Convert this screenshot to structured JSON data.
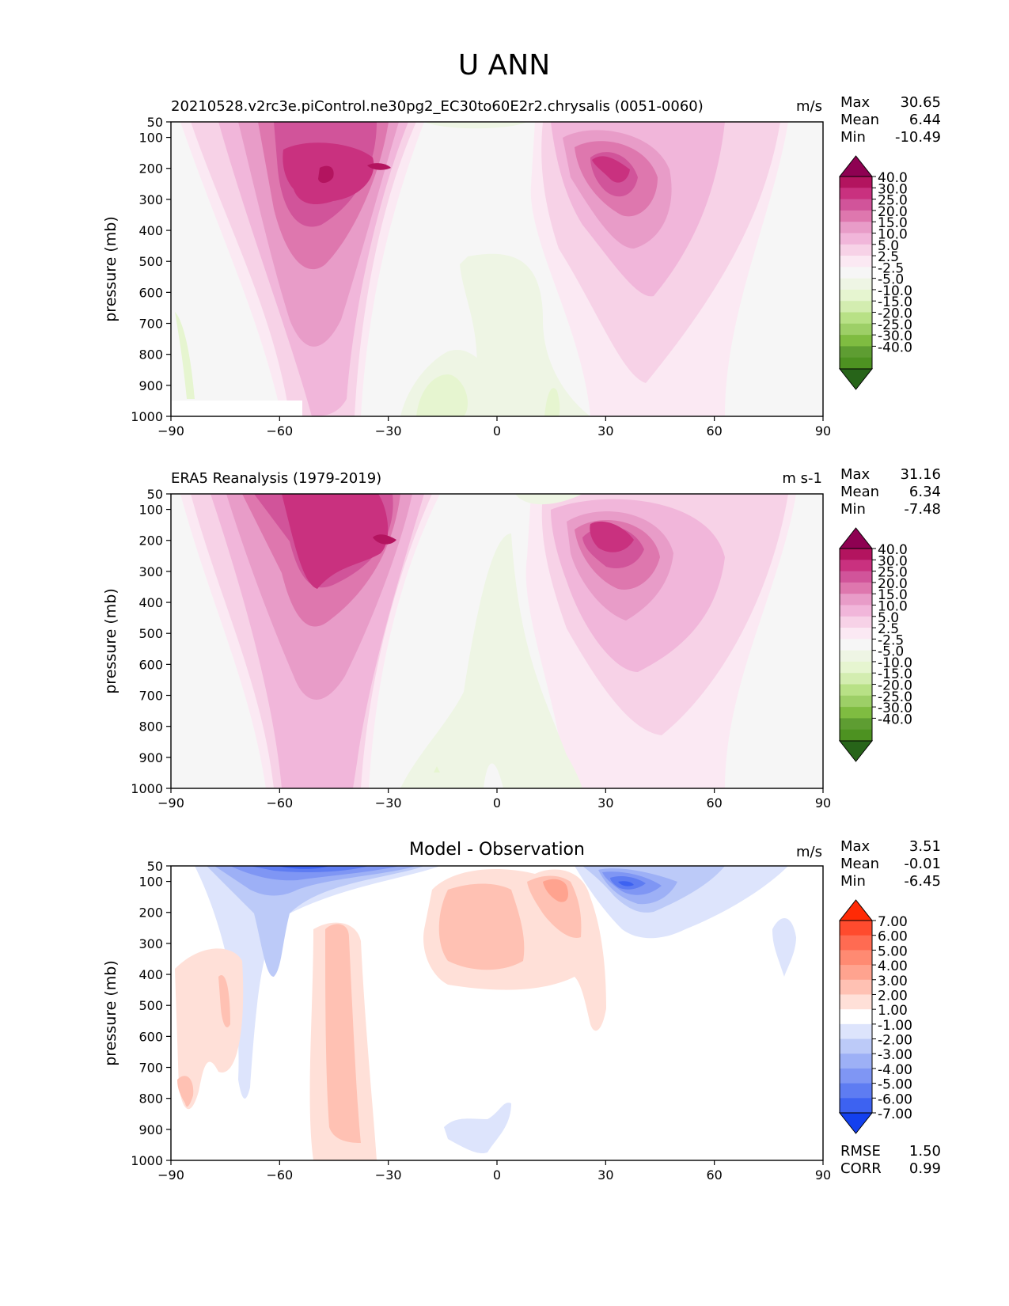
{
  "figure_title": "U ANN",
  "colors": {
    "main_cmap": [
      "#8e0152",
      "#b3145f",
      "#c9317f",
      "#d1549a",
      "#de77ae",
      "#e89cc8",
      "#f1b6da",
      "#f7d2e7",
      "#fbe9f3",
      "#f6f6f6",
      "#eef5e4",
      "#e6f5d0",
      "#d3edb0",
      "#b8e186",
      "#9dcf67",
      "#7fbc41",
      "#5e9d32",
      "#4d9221",
      "#276419"
    ],
    "diff_cmap": [
      "#ff2a05",
      "#ff4b2e",
      "#ff6b52",
      "#ff8a72",
      "#ffa38f",
      "#ffc1b3",
      "#ffe0d8",
      "#ffffff",
      "#dde4fc",
      "#bccaf8",
      "#9db0f6",
      "#7f96f4",
      "#5e7cf2",
      "#3d62f1",
      "#1340ee"
    ]
  },
  "chart_data": [
    {
      "type": "contour",
      "panel": "top",
      "title": "20210528.v2rc3e.piControl.ne30pg2_EC30to60E2r2.chrysalis (0051-0060)",
      "units": "m/s",
      "xlabel": "",
      "ylabel": "pressure (mb)",
      "xlim": [
        -90,
        90
      ],
      "ylim": [
        1000,
        50
      ],
      "xticks": [
        "−90",
        "−60",
        "−30",
        "0",
        "30",
        "60",
        "90"
      ],
      "yticks": [
        "50",
        "100",
        "200",
        "300",
        "400",
        "500",
        "600",
        "700",
        "800",
        "900",
        "1000"
      ],
      "stats": {
        "labels": [
          "Max",
          "Mean",
          "Min"
        ],
        "values": [
          "30.65",
          "6.44",
          "-10.49"
        ]
      },
      "colorbar_levels": [
        "40.0",
        "30.0",
        "25.0",
        "20.0",
        "15.0",
        "10.0",
        "5.0",
        "2.5",
        "-2.5",
        "-5.0",
        "-10.0",
        "-15.0",
        "-20.0",
        "-25.0",
        "-30.0",
        "-40.0"
      ],
      "features": [
        {
          "lat": -45,
          "p": 220,
          "value": 30.65,
          "note": "southern hemisphere jet max"
        },
        {
          "lat": 35,
          "p": 200,
          "value": 28,
          "note": "northern hemisphere jet max"
        },
        {
          "lat": -15,
          "p": 950,
          "value": -10,
          "note": "tropical surface easterlies"
        }
      ]
    },
    {
      "type": "contour",
      "panel": "middle",
      "title": "ERA5 Reanalysis (1979-2019)",
      "units": "m s-1",
      "xlabel": "",
      "ylabel": "pressure (mb)",
      "xlim": [
        -90,
        90
      ],
      "ylim": [
        1000,
        50
      ],
      "xticks": [
        "−90",
        "−60",
        "−30",
        "0",
        "30",
        "60",
        "90"
      ],
      "yticks": [
        "50",
        "100",
        "200",
        "300",
        "400",
        "500",
        "600",
        "700",
        "800",
        "900",
        "1000"
      ],
      "stats": {
        "labels": [
          "Max",
          "Mean",
          "Min"
        ],
        "values": [
          "31.16",
          "6.34",
          "-7.48"
        ]
      },
      "colorbar_levels": [
        "40.0",
        "30.0",
        "25.0",
        "20.0",
        "15.0",
        "10.0",
        "5.0",
        "2.5",
        "-2.5",
        "-5.0",
        "-10.0",
        "-15.0",
        "-20.0",
        "-25.0",
        "-30.0",
        "-40.0"
      ],
      "features": [
        {
          "lat": -50,
          "p": 200,
          "value": 31.16,
          "note": "southern hemisphere jet max"
        },
        {
          "lat": 35,
          "p": 200,
          "value": 28,
          "note": "northern hemisphere jet max"
        },
        {
          "lat": -10,
          "p": 900,
          "value": -7.48,
          "note": "tropical easterlies"
        }
      ]
    },
    {
      "type": "contour",
      "panel": "bottom",
      "title": "Model - Observation",
      "units": "m/s",
      "xlabel": "",
      "ylabel": "pressure (mb)",
      "xlim": [
        -90,
        90
      ],
      "ylim": [
        1000,
        50
      ],
      "xticks": [
        "−90",
        "−60",
        "−30",
        "0",
        "30",
        "60",
        "90"
      ],
      "yticks": [
        "50",
        "100",
        "200",
        "300",
        "400",
        "500",
        "600",
        "700",
        "800",
        "900",
        "1000"
      ],
      "stats": {
        "labels": [
          "Max",
          "Mean",
          "Min"
        ],
        "values": [
          "3.51",
          "-0.01",
          "-6.45"
        ]
      },
      "colorbar_levels": [
        "7.00",
        "6.00",
        "5.00",
        "4.00",
        "3.00",
        "2.00",
        "1.00",
        "-1.00",
        "-2.00",
        "-3.00",
        "-4.00",
        "-5.00",
        "-6.00",
        "-7.00"
      ],
      "metrics": {
        "labels": [
          "RMSE",
          "CORR"
        ],
        "values": [
          "1.50",
          "0.99"
        ]
      },
      "features": [
        {
          "lat": -55,
          "p": 60,
          "value": -6.45,
          "note": "southern stratospheric negative bias"
        },
        {
          "lat": 37,
          "p": 110,
          "value": -6,
          "note": "northern upper negative bias"
        },
        {
          "lat": 20,
          "p": 120,
          "value": 3.51,
          "note": "subtropical positive bias"
        }
      ]
    }
  ]
}
